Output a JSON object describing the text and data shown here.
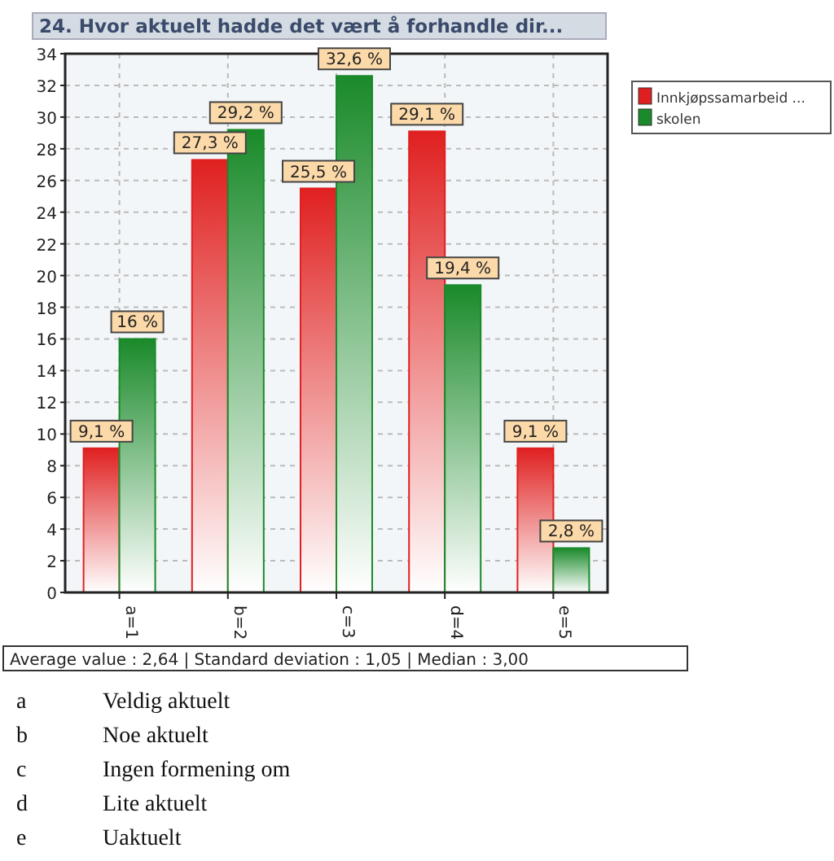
{
  "chart_data": {
    "type": "bar",
    "title": "24. Hvor aktuelt hadde det vært å forhandle dir...",
    "categories": [
      "a=1",
      "b=2",
      "c=3",
      "d=4",
      "e=5"
    ],
    "series": [
      {
        "name": "Innkjøpssamarbeid ...",
        "color": "#e02020",
        "values": [
          9.1,
          27.3,
          25.5,
          29.1,
          9.1
        ],
        "value_labels": [
          "9,1 %",
          "27,3 %",
          "25,5 %",
          "29,1 %",
          "9,1 %"
        ]
      },
      {
        "name": "skolen",
        "color": "#1a8a2a",
        "values": [
          16,
          29.2,
          32.6,
          19.4,
          2.8
        ],
        "value_labels": [
          "16 %",
          "29,2 %",
          "32,6 %",
          "19,4 %",
          "2,8 %"
        ]
      }
    ],
    "ylim": [
      0,
      34
    ],
    "yticks": [
      0,
      2,
      4,
      6,
      8,
      10,
      12,
      14,
      16,
      18,
      20,
      22,
      24,
      26,
      28,
      30,
      32,
      34
    ],
    "grid": true,
    "legend": "top right",
    "annotations": [
      "Average value : 2,64 | Standard deviation : 1,05 | Median : 3,00",
      "a Veldig aktuelt",
      "b Noe aktuelt",
      "c Ingen formening om",
      "d Lite aktuelt",
      "e Uaktuelt"
    ]
  }
}
